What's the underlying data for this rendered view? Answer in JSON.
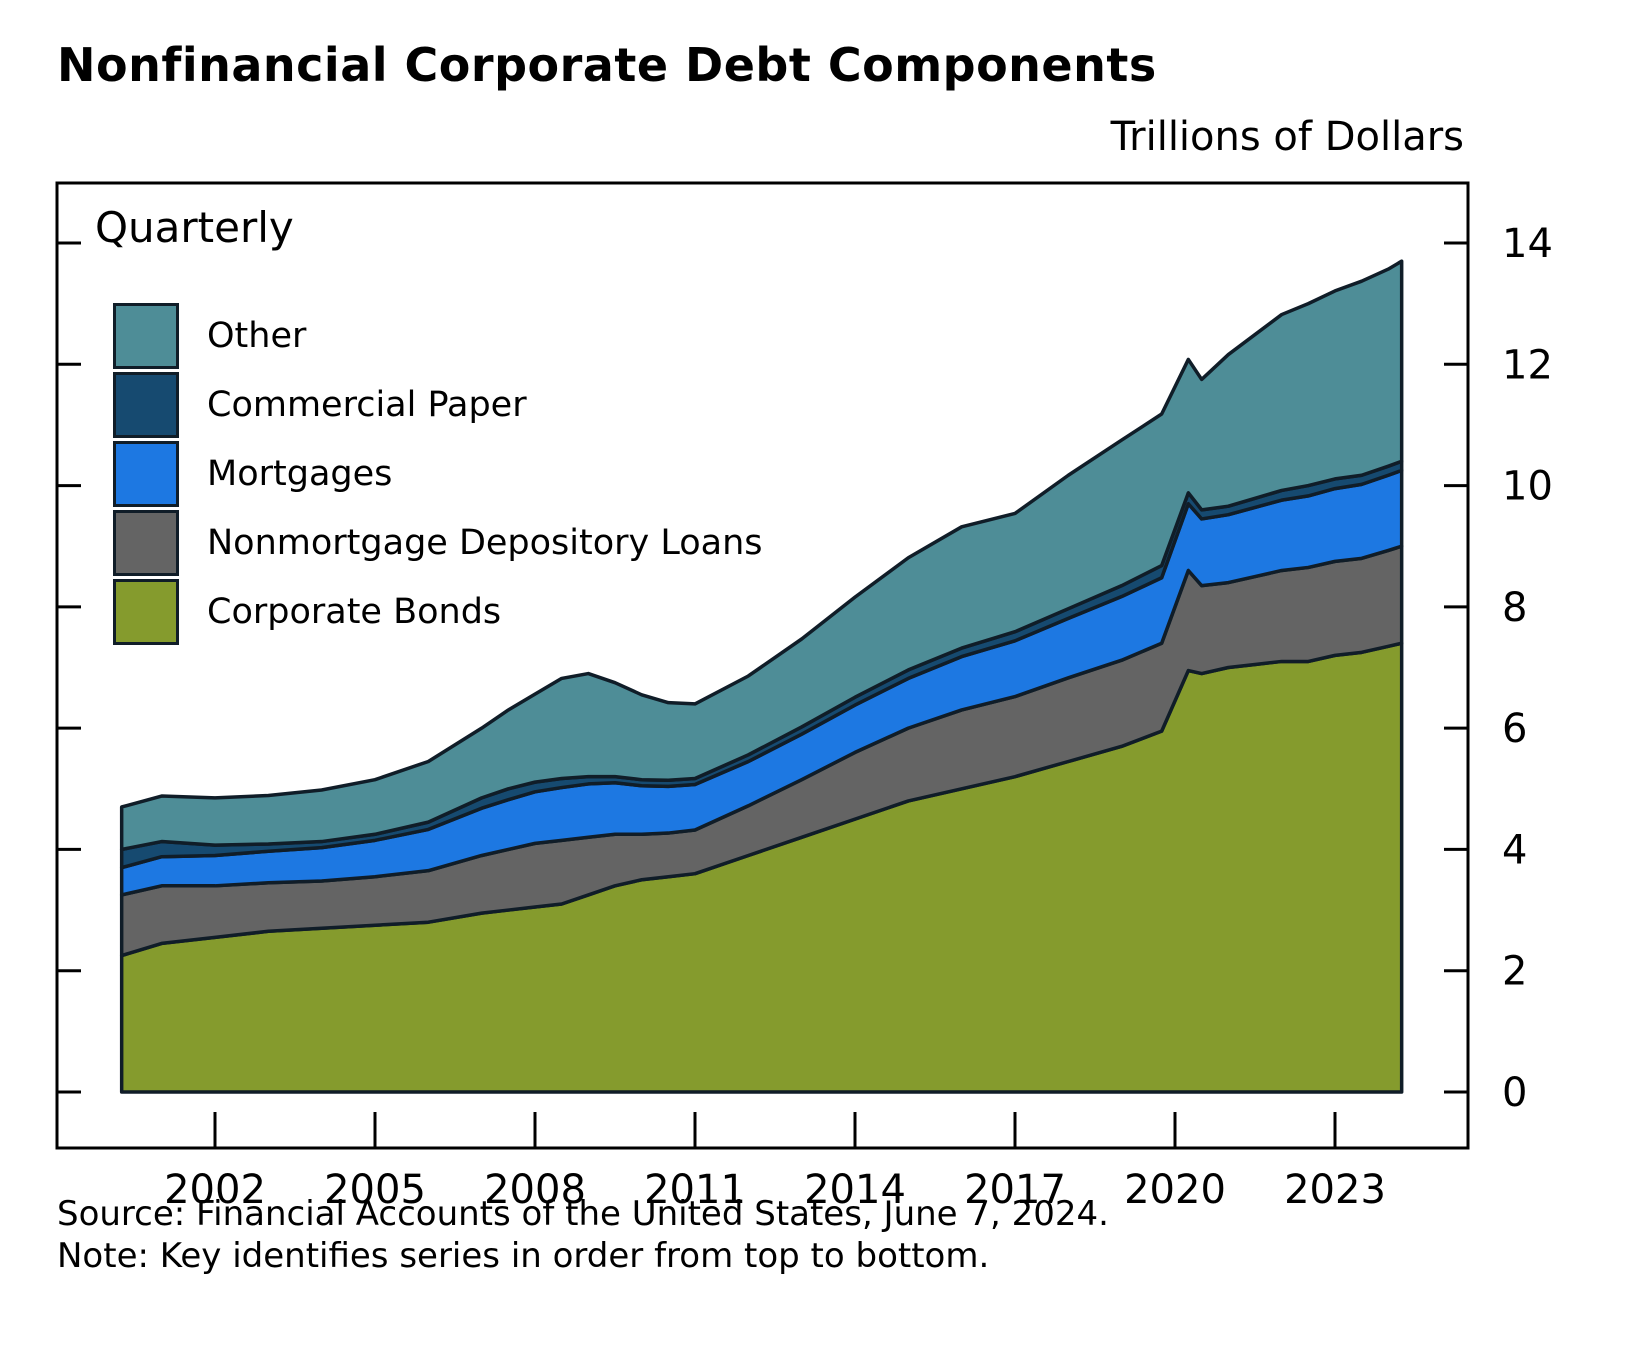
{
  "title": "Nonfinancial Corporate Debt Components",
  "unit_label": "Trillions of Dollars",
  "frequency_label": "Quarterly",
  "source": "Source: Financial Accounts of the United States, June 7, 2024.",
  "note": "Note: Key identifies series in order from top to bottom.",
  "chart_data": {
    "type": "area",
    "stacked": true,
    "title": "Nonfinancial Corporate Debt Components",
    "ylabel": "Trillions of Dollars",
    "xlabel": "",
    "ylim": [
      0,
      14
    ],
    "yticks": [
      0,
      2,
      4,
      6,
      8,
      10,
      12,
      14
    ],
    "y_axis_side": "right",
    "xticks": [
      2002,
      2005,
      2008,
      2011,
      2014,
      2017,
      2020,
      2023
    ],
    "x_range": [
      2000.25,
      2024.25
    ],
    "grid": false,
    "legend_position": "top-left-inside",
    "legend_order_top_to_bottom": [
      "Other",
      "Commercial Paper",
      "Mortgages",
      "Nonmortgage Depository Loans",
      "Corporate Bonds"
    ],
    "outline_color": "#101d28",
    "x": [
      2000.25,
      2001,
      2002,
      2003,
      2004,
      2005,
      2006,
      2007,
      2007.5,
      2008,
      2008.5,
      2009,
      2009.5,
      2010,
      2010.5,
      2011,
      2012,
      2013,
      2014,
      2015,
      2016,
      2017,
      2018,
      2019,
      2019.75,
      2020.25,
      2020.5,
      2021,
      2021.5,
      2022,
      2022.5,
      2023,
      2023.5,
      2024,
      2024.25
    ],
    "series": [
      {
        "name": "Corporate Bonds",
        "color": "#859b2d",
        "values": [
          2.25,
          2.45,
          2.55,
          2.65,
          2.7,
          2.75,
          2.8,
          2.95,
          3.0,
          3.05,
          3.1,
          3.25,
          3.4,
          3.5,
          3.55,
          3.6,
          3.9,
          4.2,
          4.5,
          4.8,
          5.0,
          5.2,
          5.45,
          5.7,
          5.95,
          6.95,
          6.9,
          7.0,
          7.05,
          7.1,
          7.1,
          7.2,
          7.25,
          7.35,
          7.4
        ]
      },
      {
        "name": "Nonmortgage Depository Loans",
        "color": "#646464",
        "values": [
          1.0,
          0.95,
          0.85,
          0.8,
          0.78,
          0.8,
          0.85,
          0.95,
          1.0,
          1.05,
          1.05,
          0.95,
          0.85,
          0.75,
          0.72,
          0.72,
          0.82,
          0.95,
          1.1,
          1.2,
          1.3,
          1.32,
          1.38,
          1.42,
          1.45,
          1.65,
          1.45,
          1.4,
          1.45,
          1.5,
          1.55,
          1.55,
          1.55,
          1.58,
          1.6
        ]
      },
      {
        "name": "Mortgages",
        "color": "#1d78e2",
        "values": [
          0.45,
          0.48,
          0.5,
          0.52,
          0.55,
          0.6,
          0.68,
          0.78,
          0.82,
          0.85,
          0.87,
          0.88,
          0.85,
          0.8,
          0.77,
          0.75,
          0.73,
          0.75,
          0.78,
          0.82,
          0.88,
          0.92,
          0.98,
          1.05,
          1.08,
          1.1,
          1.1,
          1.12,
          1.14,
          1.16,
          1.18,
          1.2,
          1.22,
          1.24,
          1.25
        ]
      },
      {
        "name": "Commercial Paper",
        "color": "#164a70",
        "values": [
          0.3,
          0.25,
          0.17,
          0.12,
          0.1,
          0.1,
          0.12,
          0.17,
          0.18,
          0.16,
          0.15,
          0.12,
          0.1,
          0.1,
          0.1,
          0.1,
          0.11,
          0.12,
          0.13,
          0.14,
          0.14,
          0.15,
          0.16,
          0.18,
          0.2,
          0.18,
          0.15,
          0.14,
          0.15,
          0.16,
          0.17,
          0.16,
          0.15,
          0.15,
          0.15
        ]
      },
      {
        "name": "Other",
        "color": "#4e8d97",
        "values": [
          0.7,
          0.75,
          0.78,
          0.8,
          0.85,
          0.9,
          1.0,
          1.15,
          1.3,
          1.45,
          1.65,
          1.7,
          1.55,
          1.4,
          1.28,
          1.23,
          1.3,
          1.45,
          1.65,
          1.85,
          2.0,
          1.95,
          2.2,
          2.4,
          2.5,
          2.2,
          2.15,
          2.5,
          2.7,
          2.9,
          3.0,
          3.1,
          3.2,
          3.25,
          3.3
        ]
      }
    ]
  }
}
